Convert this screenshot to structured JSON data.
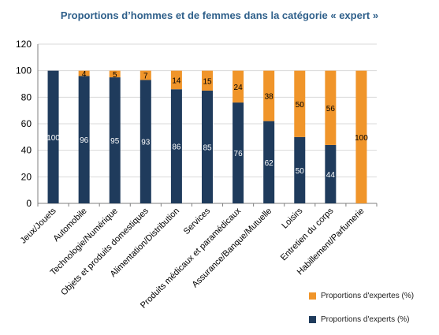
{
  "chart_data": {
    "type": "bar",
    "stacked": true,
    "title": "Proportions d’hommes et de femmes dans la catégorie « expert »",
    "categories": [
      "Jeux/Jouets",
      "Automobile",
      "Technologie/Numérique",
      "Objets et produits domestiques",
      "Alimentation/Distribution",
      "Services",
      "Produits médicaux et paramédicaux",
      "Assurance/Banque/Mutuelle",
      "Loisirs",
      "Entretien du corps",
      "Habillement/Parfumerie"
    ],
    "series": [
      {
        "name": "Proportions d'experts (%)",
        "color": "#1f3b5c",
        "label_color": "#ffffff",
        "values": [
          100,
          96,
          95,
          93,
          86,
          85,
          76,
          62,
          50,
          44,
          0
        ]
      },
      {
        "name": "Proportions d'expertes (%)",
        "color": "#f0952a",
        "label_color": "#000000",
        "values": [
          0,
          4,
          5,
          7,
          14,
          15,
          24,
          38,
          50,
          56,
          100
        ]
      }
    ],
    "ylim": [
      0,
      120
    ],
    "yticks": [
      "0",
      "20",
      "40",
      "60",
      "80",
      "100",
      "120"
    ],
    "grid": true,
    "legend_position": "bottom-right"
  }
}
